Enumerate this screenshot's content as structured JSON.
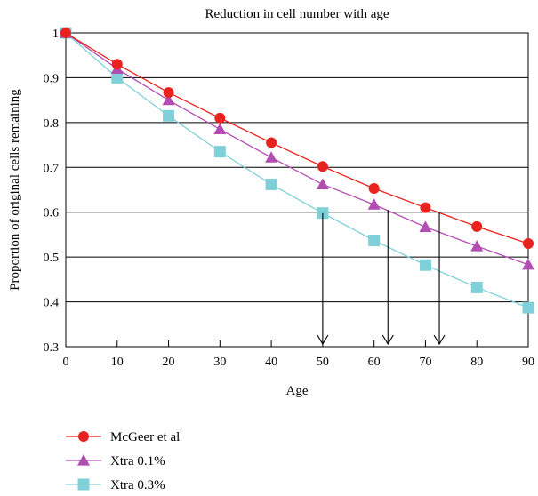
{
  "chart_data": {
    "type": "line",
    "title": "Reduction in cell number with age",
    "xlabel": "Age",
    "ylabel": "Proportion of original cells remaining",
    "xlim": [
      0,
      90
    ],
    "ylim": [
      0.3,
      1
    ],
    "x_ticks": [
      0,
      10,
      20,
      30,
      40,
      50,
      60,
      70,
      80,
      90
    ],
    "y_ticks": [
      0.3,
      0.4,
      0.5,
      0.6,
      0.7,
      0.8,
      0.9,
      1
    ],
    "y_tick_labels": [
      "0.3",
      "0.4",
      "0.5",
      "0.6",
      "0.7",
      "0.8",
      "0.9",
      "1"
    ],
    "grid": "horizontal",
    "legend_position": "bottom-left",
    "x": [
      0,
      10,
      20,
      30,
      40,
      50,
      60,
      70,
      80,
      90
    ],
    "series": [
      {
        "name": "McGeer et al",
        "color": "#e8221f",
        "marker": "circle",
        "values": [
          1.0,
          0.93,
          0.867,
          0.81,
          0.755,
          0.702,
          0.653,
          0.61,
          0.568,
          0.53
        ]
      },
      {
        "name": "Xtra 0.1%",
        "color": "#b24eb2",
        "marker": "triangle",
        "values": [
          1.0,
          0.92,
          0.85,
          0.785,
          0.722,
          0.662,
          0.617,
          0.567,
          0.524,
          0.483
        ]
      },
      {
        "name": "Xtra 0.3%",
        "color": "#7fd0d8",
        "marker": "square",
        "values": [
          1.0,
          0.9,
          0.815,
          0.735,
          0.662,
          0.598,
          0.537,
          0.482,
          0.432,
          0.387
        ]
      }
    ],
    "annotations": [
      {
        "type": "arrow",
        "series": "Xtra 0.3%",
        "x": 50,
        "y_from": 0.598,
        "y_to": 0.3
      },
      {
        "type": "arrow",
        "series": "Xtra 0.1%",
        "x": 62.7,
        "y_from": 0.605,
        "y_to": 0.3
      },
      {
        "type": "arrow",
        "series": "McGeer et al",
        "x": 72.7,
        "y_from": 0.6,
        "y_to": 0.3
      }
    ]
  }
}
